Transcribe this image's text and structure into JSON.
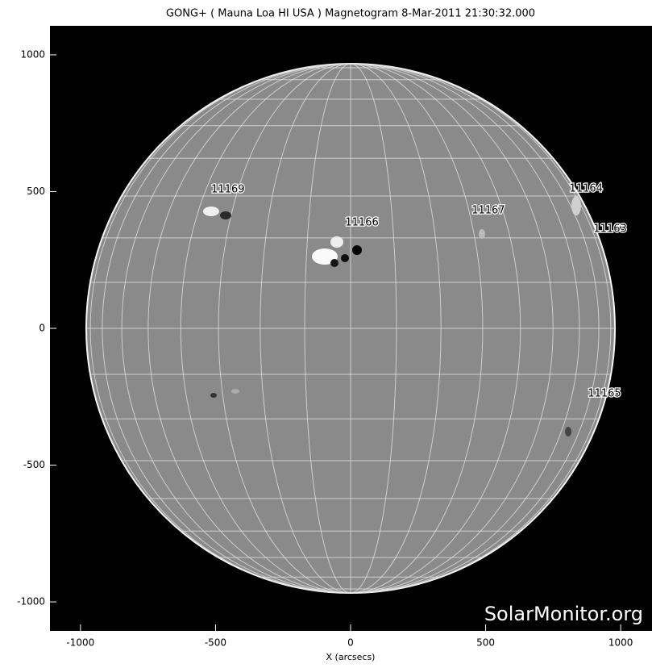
{
  "chart_data": {
    "type": "image",
    "title": "GONG+ ( Mauna Loa HI USA  ) Magnetogram  8-Mar-2011 21:30:32.000",
    "x_label": "X (arcsecs)",
    "watermark": "SolarMonitor.org",
    "xlim": [
      -1113,
      1116
    ],
    "ylim": [
      -1106,
      1106
    ],
    "xticks": [
      -1000,
      -500,
      0,
      500,
      1000
    ],
    "yticks": [
      -1000,
      -500,
      0,
      500,
      1000
    ],
    "annotations": [
      {
        "text": "11169",
        "x": -454,
        "y": 507
      },
      {
        "text": "11166",
        "x": 42,
        "y": 386
      },
      {
        "text": "11167",
        "x": 510,
        "y": 431
      },
      {
        "text": "11164",
        "x": 872,
        "y": 510
      },
      {
        "text": "11163",
        "x": 961,
        "y": 363
      },
      {
        "text": "11165",
        "x": 940,
        "y": -239
      }
    ]
  }
}
